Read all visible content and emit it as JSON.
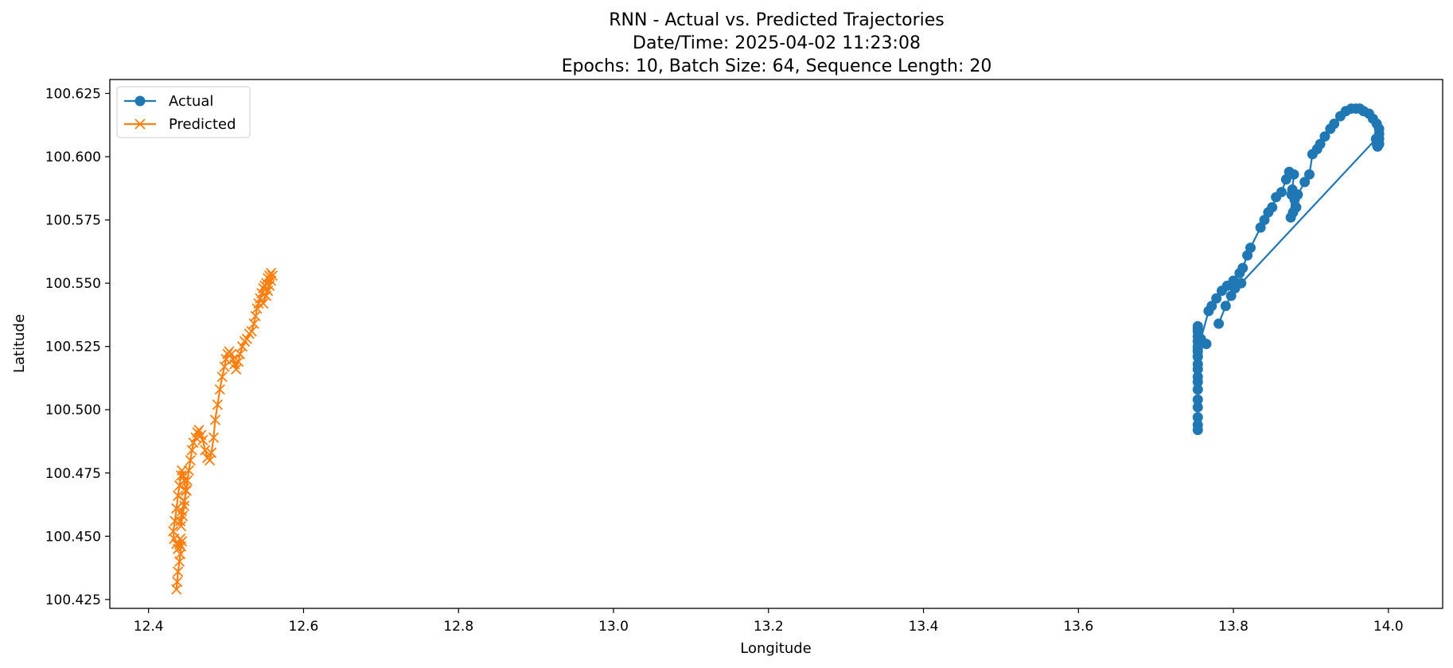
{
  "chart_data": {
    "type": "line",
    "title": [
      "RNN - Actual vs. Predicted Trajectories",
      "Date/Time: 2025-04-02 11:23:08",
      "Epochs: 10, Batch Size: 64, Sequence Length: 20"
    ],
    "xlabel": "Longitude",
    "ylabel": "Latitude",
    "xlim": [
      12.35,
      14.07
    ],
    "ylim": [
      100.4215,
      100.6305
    ],
    "xticks": [
      12.4,
      12.6,
      12.8,
      13.0,
      13.2,
      13.4,
      13.6,
      13.8,
      14.0
    ],
    "xtick_labels": [
      "12.4",
      "12.6",
      "12.8",
      "13.0",
      "13.2",
      "13.4",
      "13.6",
      "13.8",
      "14.0"
    ],
    "yticks": [
      100.425,
      100.45,
      100.475,
      100.5,
      100.525,
      100.55,
      100.575,
      100.6,
      100.625
    ],
    "ytick_labels": [
      "100.425",
      "100.450",
      "100.475",
      "100.500",
      "100.525",
      "100.550",
      "100.575",
      "100.600",
      "100.625"
    ],
    "grid": false,
    "legend": "top-left",
    "series": [
      {
        "name": "Actual",
        "color": "#1f77b4",
        "marker": "circle",
        "x": [
          13.754,
          13.754,
          13.754,
          13.754,
          13.754,
          13.754,
          13.754,
          13.754,
          13.754,
          13.754,
          13.754,
          13.754,
          13.754,
          13.754,
          13.754,
          13.754,
          13.754,
          13.754,
          13.765,
          13.754,
          13.754,
          13.758,
          13.768,
          13.772,
          13.778,
          13.785,
          13.792,
          13.8,
          13.808,
          13.812,
          13.818,
          13.822,
          13.835,
          13.84,
          13.845,
          13.85,
          13.855,
          13.862,
          13.868,
          13.872,
          13.878,
          13.876,
          13.874,
          13.877,
          13.881,
          13.879,
          13.875,
          13.883,
          13.892,
          13.898,
          13.902,
          13.908,
          13.912,
          13.918,
          13.925,
          13.93,
          13.938,
          13.945,
          13.952,
          13.958,
          13.963,
          13.968,
          13.975,
          13.98,
          13.985,
          13.988,
          13.988,
          13.988,
          13.988,
          13.986,
          13.985,
          13.986,
          13.984,
          13.81,
          13.802,
          13.797,
          13.79,
          13.781
        ],
        "y": [
          100.492,
          100.494,
          100.497,
          100.501,
          100.504,
          100.508,
          100.511,
          100.513,
          100.516,
          100.518,
          100.521,
          100.523,
          100.525,
          100.527,
          100.529,
          100.531,
          100.532,
          100.533,
          100.526,
          100.524,
          100.521,
          100.528,
          100.539,
          100.541,
          100.544,
          100.547,
          100.549,
          100.551,
          100.554,
          100.556,
          100.561,
          100.564,
          100.572,
          100.575,
          100.578,
          100.58,
          100.584,
          100.586,
          100.591,
          100.594,
          100.593,
          100.587,
          100.576,
          100.578,
          100.58,
          100.583,
          100.585,
          100.585,
          100.59,
          100.593,
          100.601,
          100.603,
          100.605,
          100.608,
          100.611,
          100.613,
          100.616,
          100.618,
          100.619,
          100.619,
          100.619,
          100.618,
          100.617,
          100.615,
          100.613,
          100.611,
          100.609,
          100.607,
          100.605,
          100.604,
          100.605,
          100.606,
          100.607,
          100.55,
          100.548,
          100.545,
          100.541,
          100.534
        ]
      },
      {
        "name": "Predicted",
        "color": "#ff7f0e",
        "marker": "x",
        "x": [
          12.436,
          12.437,
          12.438,
          12.44,
          12.441,
          12.442,
          12.443,
          12.441,
          12.44,
          12.438,
          12.436,
          12.433,
          12.432,
          12.434,
          12.436,
          12.438,
          12.44,
          12.442,
          12.443,
          12.445,
          12.446,
          12.448,
          12.446,
          12.444,
          12.442,
          12.441,
          12.443,
          12.446,
          12.449,
          12.45,
          12.452,
          12.454,
          12.456,
          12.458,
          12.461,
          12.463,
          12.465,
          12.468,
          12.47,
          12.473,
          12.476,
          12.479,
          12.481,
          12.484,
          12.486,
          12.489,
          12.492,
          12.495,
          12.498,
          12.5,
          12.502,
          12.504,
          12.507,
          12.509,
          12.511,
          12.513,
          12.516,
          12.518,
          12.521,
          12.524,
          12.527,
          12.53,
          12.533,
          12.536,
          12.538,
          12.54,
          12.542,
          12.544,
          12.546,
          12.548,
          12.55,
          12.552,
          12.554,
          12.556,
          12.558,
          12.56,
          12.558,
          12.556,
          12.554,
          12.552,
          12.548
        ],
        "y": [
          100.429,
          100.432,
          100.436,
          100.44,
          100.443,
          100.446,
          100.448,
          100.449,
          100.447,
          100.445,
          100.447,
          100.449,
          100.452,
          100.456,
          100.461,
          100.466,
          100.47,
          100.474,
          100.476,
          100.474,
          100.472,
          100.468,
          100.462,
          100.458,
          100.454,
          100.456,
          100.46,
          100.464,
          100.468,
          100.472,
          100.476,
          100.48,
          100.484,
          100.487,
          100.489,
          100.491,
          100.492,
          100.49,
          100.488,
          100.484,
          100.481,
          100.48,
          100.483,
          100.489,
          100.496,
          100.502,
          100.508,
          100.513,
          100.517,
          100.52,
          100.522,
          100.523,
          100.522,
          100.52,
          100.518,
          100.516,
          100.519,
          100.522,
          100.525,
          100.527,
          100.528,
          100.53,
          100.531,
          100.534,
          100.537,
          100.54,
          100.542,
          100.544,
          100.546,
          100.548,
          100.549,
          100.55,
          100.552,
          100.553,
          100.554,
          100.553,
          100.551,
          100.549,
          100.547,
          100.545,
          100.542
        ]
      }
    ]
  }
}
